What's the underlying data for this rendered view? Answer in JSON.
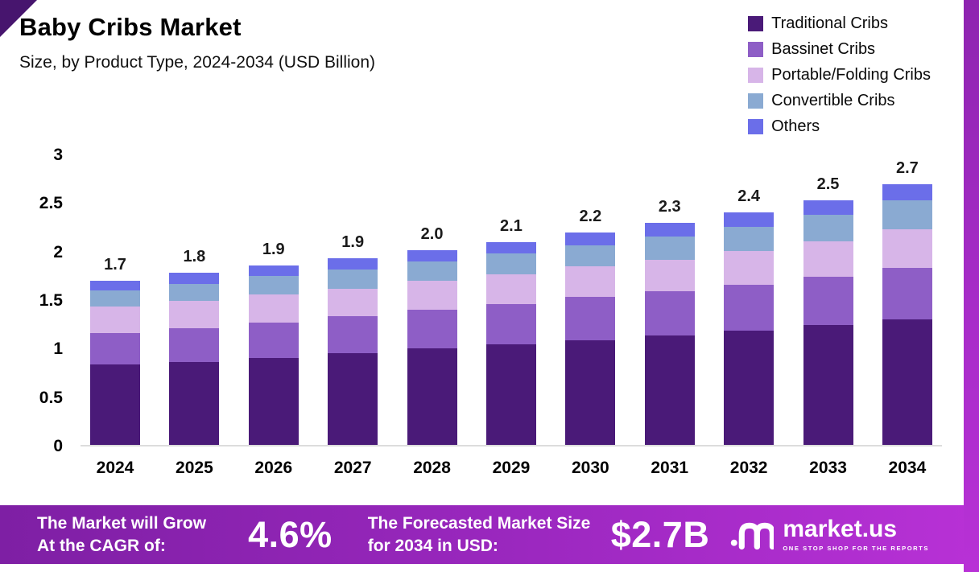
{
  "header": {
    "title": "Baby Cribs Market",
    "subtitle": "Size, by Product Type, 2024-2034 (USD Billion)"
  },
  "chart_data": {
    "type": "bar",
    "stacked": true,
    "title": "Baby Cribs Market",
    "subtitle": "Size, by Product Type, 2024-2034 (USD Billion)",
    "xlabel": "",
    "ylabel": "USD Billion",
    "ylim": [
      0,
      3
    ],
    "yticks": [
      "3",
      "2.5",
      "2",
      "1.5",
      "1",
      "0.5",
      "0"
    ],
    "grid": false,
    "legend_position": "top-right",
    "categories": [
      "2024",
      "2025",
      "2026",
      "2027",
      "2028",
      "2029",
      "2030",
      "2031",
      "2032",
      "2033",
      "2034"
    ],
    "series": [
      {
        "name": "Traditional Cribs",
        "color": "#4a1a78",
        "values": [
          0.83,
          0.86,
          0.9,
          0.95,
          1.0,
          1.04,
          1.08,
          1.13,
          1.18,
          1.24,
          1.3
        ]
      },
      {
        "name": "Bassinet Cribs",
        "color": "#8e5ec6",
        "values": [
          0.33,
          0.35,
          0.37,
          0.38,
          0.4,
          0.42,
          0.45,
          0.46,
          0.48,
          0.5,
          0.53
        ]
      },
      {
        "name": "Portable/Folding Cribs",
        "color": "#d7b5e8",
        "values": [
          0.27,
          0.28,
          0.29,
          0.29,
          0.3,
          0.31,
          0.32,
          0.33,
          0.35,
          0.37,
          0.4
        ]
      },
      {
        "name": "Convertible Cribs",
        "color": "#8aaad2",
        "values": [
          0.17,
          0.18,
          0.19,
          0.2,
          0.2,
          0.21,
          0.22,
          0.24,
          0.25,
          0.27,
          0.3
        ]
      },
      {
        "name": "Others",
        "color": "#6b6ee9",
        "values": [
          0.1,
          0.11,
          0.11,
          0.11,
          0.12,
          0.12,
          0.13,
          0.14,
          0.15,
          0.15,
          0.17
        ]
      }
    ],
    "totals": [
      1.7,
      1.8,
      1.9,
      1.9,
      2.0,
      2.1,
      2.2,
      2.3,
      2.4,
      2.5,
      2.7
    ]
  },
  "footer": {
    "cagr_label": "The Market will Grow At the CAGR of:",
    "cagr_value": "4.6%",
    "forecast_label": "The Forecasted Market Size for 2034 in USD:",
    "forecast_value": "$2.7B",
    "brand": "market.us",
    "brand_tagline": "ONE STOP SHOP FOR THE REPORTS"
  }
}
